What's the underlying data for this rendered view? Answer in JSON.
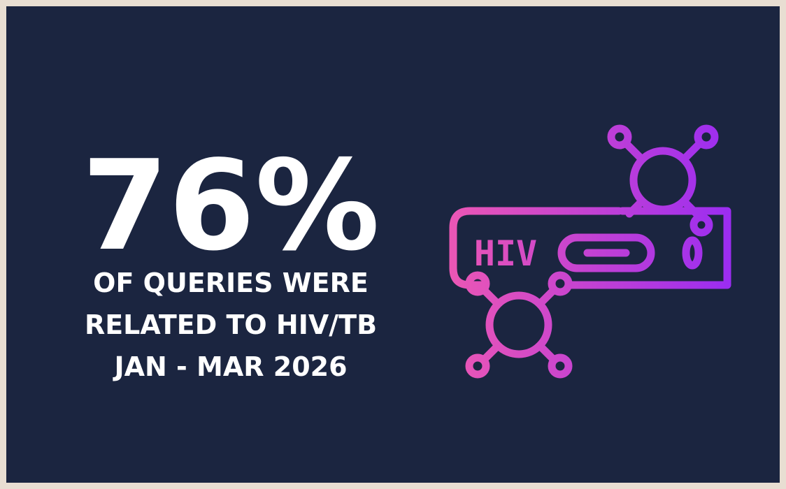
{
  "stat": "76%",
  "lines": [
    "OF QUERIES WERE",
    "RELATED TO HIV/TB",
    "JAN - MAR 2026"
  ],
  "icon_label": "HIV"
}
